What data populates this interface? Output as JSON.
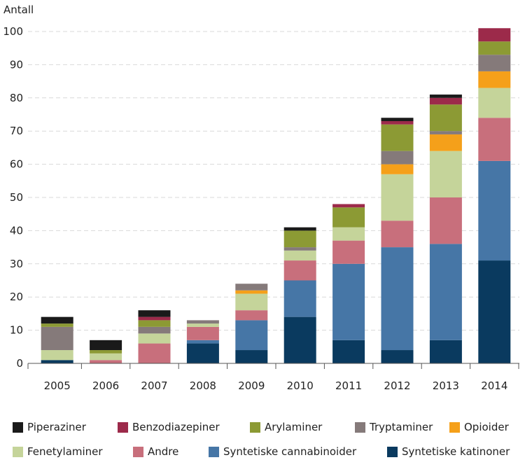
{
  "chart_data": {
    "type": "bar",
    "stacked": true,
    "ylabel": "Antall",
    "ylim": [
      0,
      100
    ],
    "yticks": [
      0,
      10,
      20,
      30,
      40,
      50,
      60,
      70,
      80,
      90,
      100
    ],
    "grid": "horizontal-dashed",
    "legend_position": "bottom",
    "categories": [
      "2005",
      "2006",
      "2007",
      "2008",
      "2009",
      "2010",
      "2011",
      "2012",
      "2013",
      "2014"
    ],
    "series": [
      {
        "name": "Syntetiske katinoner",
        "color": "#0a3a5f",
        "values": [
          1,
          0,
          0,
          6,
          4,
          14,
          7,
          4,
          7,
          31
        ]
      },
      {
        "name": "Syntetiske cannabinoider",
        "color": "#4676a6",
        "values": [
          0,
          0,
          0,
          1,
          9,
          11,
          23,
          31,
          29,
          30
        ]
      },
      {
        "name": "Andre",
        "color": "#c86f7c",
        "values": [
          0,
          1,
          6,
          4,
          3,
          6,
          7,
          8,
          14,
          13
        ]
      },
      {
        "name": "Fenetylaminer",
        "color": "#c5d49a",
        "values": [
          3,
          2,
          3,
          1,
          5,
          3,
          4,
          14,
          14,
          9
        ]
      },
      {
        "name": "Opioider",
        "color": "#f5a01a",
        "values": [
          0,
          0,
          0,
          0,
          1,
          0,
          0,
          3,
          5,
          5
        ]
      },
      {
        "name": "Tryptaminer",
        "color": "#857a7a",
        "values": [
          7,
          0,
          2,
          1,
          2,
          1,
          0,
          4,
          1,
          5
        ]
      },
      {
        "name": "Arylaminer",
        "color": "#8c9a34",
        "values": [
          1,
          1,
          2,
          0,
          0,
          5,
          6,
          8,
          8,
          4
        ]
      },
      {
        "name": "Benzodiazepiner",
        "color": "#9c2a4a",
        "values": [
          0,
          0,
          1,
          0,
          0,
          0,
          1,
          1,
          2,
          4
        ]
      },
      {
        "name": "Piperaziner",
        "color": "#1a1a1a",
        "values": [
          2,
          3,
          2,
          0,
          0,
          1,
          0,
          1,
          1,
          0
        ]
      }
    ],
    "legend_rows": [
      [
        "Piperaziner",
        "Benzodiazepiner",
        "Arylaminer",
        "Tryptaminer",
        "Opioider"
      ],
      [
        "Fenetylaminer",
        "Andre",
        "Syntetiske cannabinoider",
        "Syntetiske katinoner"
      ]
    ]
  }
}
